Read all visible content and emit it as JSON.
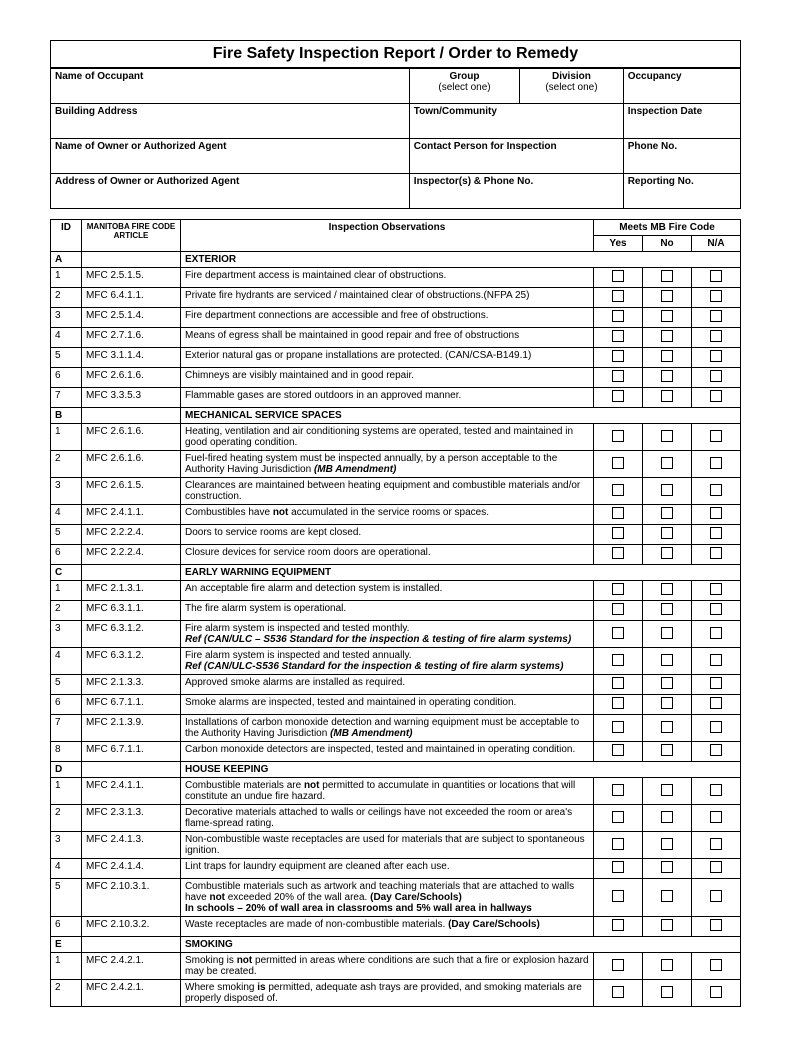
{
  "title": "Fire Safety Inspection Report / Order to Remedy",
  "header": {
    "name_occupant": "Name of Occupant",
    "group": "Group",
    "group_sub": "(select one)",
    "division": "Division",
    "division_sub": "(select one)",
    "occupancy": "Occupancy",
    "building_address": "Building Address",
    "town": "Town/Community",
    "inspection_date": "Inspection Date",
    "owner_name": "Name of Owner or Authorized Agent",
    "contact_person": "Contact Person for Inspection",
    "phone": "Phone No.",
    "owner_address": "Address of Owner or Authorized Agent",
    "inspectors": "Inspector(s) & Phone No.",
    "reporting": "Reporting No."
  },
  "cols": {
    "id": "ID",
    "code": "MANITOBA FIRE CODE ARTICLE",
    "obs": "Inspection Observations",
    "meets": "Meets MB Fire Code",
    "yes": "Yes",
    "no": "No",
    "na": "N/A"
  },
  "sections": [
    {
      "letter": "A",
      "heading": "EXTERIOR",
      "rows": [
        {
          "id": "1",
          "code": "MFC 2.5.1.5.",
          "obs": "Fire department access is maintained clear of obstructions."
        },
        {
          "id": "2",
          "code": "MFC 6.4.1.1.",
          "obs": "Private fire hydrants are serviced / maintained clear of obstructions.(NFPA 25)"
        },
        {
          "id": "3",
          "code": "MFC 2.5.1.4.",
          "obs": "Fire department connections are accessible and free of obstructions."
        },
        {
          "id": "4",
          "code": "MFC 2.7.1.6.",
          "obs": "Means of egress shall be maintained in good repair and free of obstructions"
        },
        {
          "id": "5",
          "code": "MFC 3.1.1.4.",
          "obs": "Exterior natural gas or propane installations are protected. (CAN/CSA-B149.1)"
        },
        {
          "id": "6",
          "code": "MFC 2.6.1.6.",
          "obs": "Chimneys are visibly maintained and in good repair."
        },
        {
          "id": "7",
          "code": "MFC 3.3.5.3",
          "obs": "Flammable gases are stored outdoors in an approved manner."
        }
      ]
    },
    {
      "letter": "B",
      "heading": "MECHANICAL SERVICE SPACES",
      "rows": [
        {
          "id": "1",
          "code": "MFC 2.6.1.6.",
          "obs": "Heating, ventilation and air conditioning systems are operated, tested and maintained in good operating condition."
        },
        {
          "id": "2",
          "code": "MFC 2.6.1.6.",
          "obs": "Fuel-fired heating system must be inspected annually, by a person acceptable to the Authority Having Jurisdiction   <i><b>(MB Amendment)</b></i>"
        },
        {
          "id": "3",
          "code": "MFC 2.6.1.5.",
          "obs": "Clearances are maintained between heating equipment and combustible materials and/or construction."
        },
        {
          "id": "4",
          "code": "MFC 2.4.1.1.",
          "obs": "Combustibles have <b>not</b> accumulated in the service rooms or spaces."
        },
        {
          "id": "5",
          "code": "MFC 2.2.2.4.",
          "obs": "Doors to service rooms are kept closed."
        },
        {
          "id": "6",
          "code": "MFC 2.2.2.4.",
          "obs": "Closure devices for service room doors are operational."
        }
      ]
    },
    {
      "letter": "C",
      "heading": "EARLY WARNING EQUIPMENT",
      "rows": [
        {
          "id": "1",
          "code": "MFC 2.1.3.1.",
          "obs": "An acceptable fire alarm and detection system is installed."
        },
        {
          "id": "2",
          "code": "MFC 6.3.1.1.",
          "obs": "The fire alarm system is operational."
        },
        {
          "id": "3",
          "code": "MFC 6.3.1.2.",
          "obs": "Fire alarm system is inspected and tested monthly.<br><i><b>Ref  (CAN/ULC – S536 Standard for the inspection & testing of fire alarm systems)</b></i>"
        },
        {
          "id": "4",
          "code": "MFC 6.3.1.2.",
          "obs": "Fire alarm system is inspected and tested annually.<br><i><b>Ref (CAN/ULC-S536 Standard for the inspection & testing of fire alarm systems)</b></i>"
        },
        {
          "id": "5",
          "code": "MFC 2.1.3.3.",
          "obs": "Approved smoke alarms are installed as required."
        },
        {
          "id": "6",
          "code": "MFC 6.7.1.1.",
          "obs": "Smoke alarms are inspected, tested and maintained in operating condition."
        },
        {
          "id": "7",
          "code": "MFC 2.1.3.9.",
          "obs": "Installations of carbon monoxide detection and warning equipment must be acceptable to the Authority Having Jurisdiction  <i><b>(MB Amendment)</b></i>"
        },
        {
          "id": "8",
          "code": "MFC 6.7.1.1.",
          "obs": "Carbon monoxide detectors are inspected, tested and maintained in operating condition."
        }
      ]
    },
    {
      "letter": "D",
      "heading": "HOUSE KEEPING",
      "rows": [
        {
          "id": "1",
          "code": "MFC 2.4.1.1.",
          "obs": "Combustible materials are <b>not</b> permitted to accumulate in quantities or locations that will constitute an undue fire hazard."
        },
        {
          "id": "2",
          "code": "MFC 2.3.1.3.",
          "obs": "Decorative materials attached to walls or ceilings have not exceeded the room or area's flame-spread rating."
        },
        {
          "id": "3",
          "code": "MFC 2.4.1.3.",
          "obs": "Non-combustible waste receptacles are used for materials that are subject to spontaneous ignition."
        },
        {
          "id": "4",
          "code": "MFC 2.4.1.4.",
          "obs": "Lint traps for laundry equipment are cleaned after each use."
        },
        {
          "id": "5",
          "code": "MFC 2.10.3.1.",
          "obs": "Combustible materials such as artwork and teaching materials that are attached to walls have <b>not</b> exceeded 20% of the wall area.  <b>(Day Care/Schools)</b><br><b>In schools – 20% of wall area in classrooms and 5% wall area in hallways</b>"
        },
        {
          "id": "6",
          "code": "MFC 2.10.3.2.",
          "obs": "Waste receptacles are made of non-combustible materials. <b>(Day Care/Schools)</b>"
        }
      ]
    },
    {
      "letter": "E",
      "heading": "SMOKING",
      "rows": [
        {
          "id": "1",
          "code": "MFC 2.4.2.1.",
          "obs": "Smoking is <b>not</b> permitted in areas where conditions are such that a fire or explosion hazard may be created."
        },
        {
          "id": "2",
          "code": "MFC 2.4.2.1.",
          "obs": "Where smoking <b>is</b> permitted, adequate ash trays are provided, and smoking materials are properly disposed of."
        }
      ]
    }
  ]
}
